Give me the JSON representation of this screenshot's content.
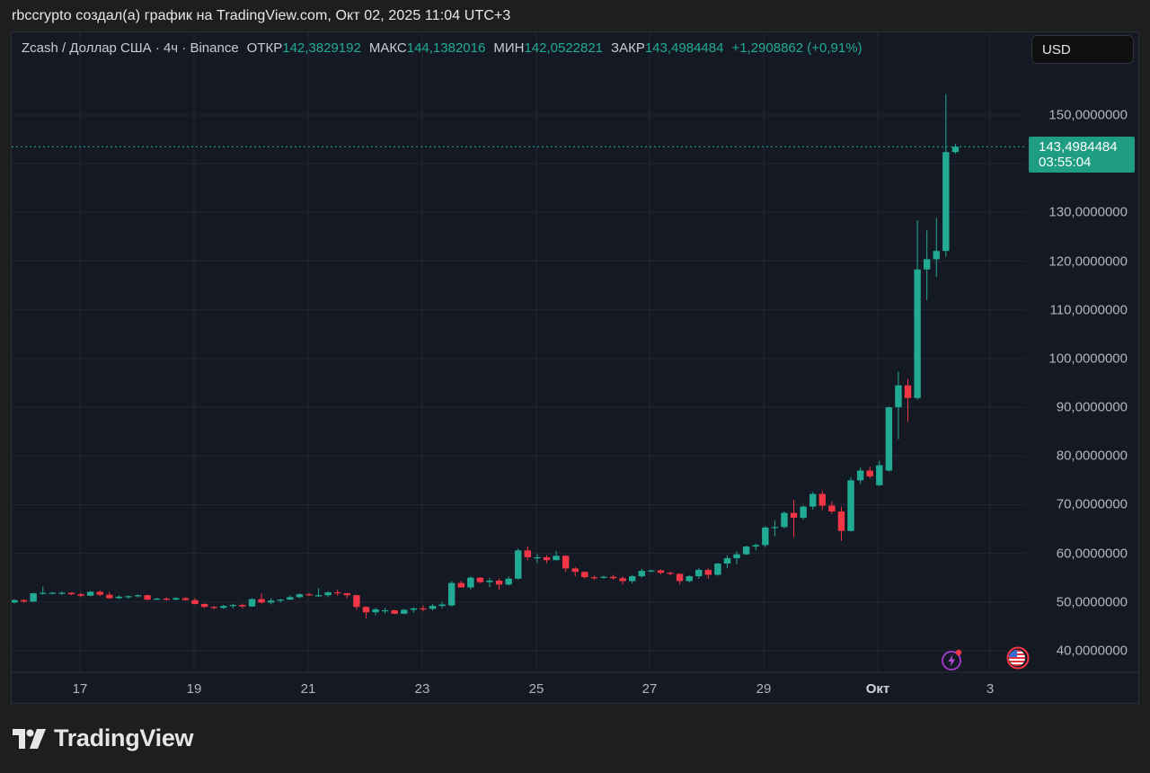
{
  "caption": "rbccrypto создал(а) график на TradingView.com, Окт 02, 2025 11:04 UTC+3",
  "legend": {
    "symbol": "Zcash / Доллар США · 4ч · Binance",
    "open_label": "ОТКР",
    "open": "142,3829192",
    "high_label": "МАКС",
    "high": "144,1382016",
    "low_label": "МИН",
    "low": "142,0522821",
    "close_label": "ЗАКР",
    "close": "143,4984484",
    "change": "+1,2908862 (+0,91%)"
  },
  "currency_button": "USD",
  "price_tag": {
    "price": "143,4984484",
    "countdown": "03:55:04"
  },
  "colors": {
    "up": "#22ab94",
    "down": "#f23645",
    "background": "#151924",
    "grid": "#232733",
    "tag": "#1f9d83"
  },
  "icons": {
    "events": "lightning-icon",
    "economic": "us-flag-icon"
  },
  "logo": {
    "text": "TradingView"
  },
  "chart_data": {
    "type": "candlestick",
    "title": "Zcash / Доллар США · 4ч · Binance",
    "xlabel": "",
    "ylabel": "USD",
    "ylim": [
      35,
      159
    ],
    "y_ticks": [
      "150,0000000",
      "130,0000000",
      "120,0000000",
      "110,0000000",
      "100,0000000",
      "90,0000000",
      "80,0000000",
      "70,0000000",
      "60,0000000",
      "50,0000000",
      "40,0000000"
    ],
    "x_ticks": [
      "17",
      "19",
      "21",
      "23",
      "25",
      "27",
      "29",
      "Окт",
      "3"
    ],
    "grid": true,
    "last_price": 143.4984484,
    "candles": [
      [
        49.9,
        50.6,
        49.7,
        50.4
      ],
      [
        50.4,
        50.6,
        49.8,
        50.1
      ],
      [
        50.1,
        51.9,
        50.0,
        51.8
      ],
      [
        51.8,
        53.2,
        51.5,
        51.9
      ],
      [
        51.9,
        52.1,
        51.6,
        51.9
      ],
      [
        51.9,
        52.2,
        51.5,
        51.9
      ],
      [
        51.9,
        52.0,
        51.4,
        51.6
      ],
      [
        51.6,
        51.9,
        51.0,
        51.3
      ],
      [
        51.3,
        52.3,
        51.2,
        52.1
      ],
      [
        52.1,
        52.4,
        51.2,
        51.5
      ],
      [
        51.5,
        52.1,
        50.6,
        50.8
      ],
      [
        50.8,
        51.4,
        50.6,
        51.1
      ],
      [
        51.1,
        51.4,
        50.7,
        51.2
      ],
      [
        51.2,
        51.6,
        50.9,
        51.4
      ],
      [
        51.4,
        51.5,
        50.3,
        50.5
      ],
      [
        50.5,
        50.9,
        50.4,
        50.7
      ],
      [
        50.7,
        51.0,
        50.3,
        50.5
      ],
      [
        50.5,
        51.0,
        50.3,
        50.8
      ],
      [
        50.8,
        51.0,
        50.3,
        50.4
      ],
      [
        50.4,
        50.8,
        49.5,
        49.6
      ],
      [
        49.6,
        49.7,
        48.8,
        49.0
      ],
      [
        49.0,
        49.2,
        48.5,
        48.8
      ],
      [
        48.8,
        49.4,
        48.6,
        49.2
      ],
      [
        49.2,
        49.6,
        48.7,
        49.4
      ],
      [
        49.4,
        49.7,
        48.7,
        49.1
      ],
      [
        49.1,
        50.8,
        49.0,
        50.6
      ],
      [
        50.6,
        51.8,
        49.7,
        49.9
      ],
      [
        49.9,
        50.8,
        49.5,
        50.3
      ],
      [
        50.3,
        50.6,
        49.9,
        50.5
      ],
      [
        50.5,
        51.4,
        50.4,
        51.0
      ],
      [
        51.0,
        51.8,
        50.8,
        51.6
      ],
      [
        51.6,
        51.9,
        51.3,
        51.4
      ],
      [
        51.4,
        52.8,
        51.1,
        51.4
      ],
      [
        51.4,
        52.2,
        51.0,
        52.0
      ],
      [
        52.0,
        52.6,
        51.3,
        51.8
      ],
      [
        51.8,
        51.9,
        50.8,
        51.4
      ],
      [
        51.4,
        51.5,
        48.4,
        49.0
      ],
      [
        49.0,
        49.1,
        46.6,
        47.9
      ],
      [
        47.9,
        48.8,
        47.3,
        48.5
      ],
      [
        48.3,
        48.8,
        47.6,
        48.3
      ],
      [
        48.3,
        48.4,
        47.5,
        47.6
      ],
      [
        47.6,
        48.6,
        47.5,
        48.4
      ],
      [
        48.4,
        48.9,
        47.8,
        48.7
      ],
      [
        48.7,
        49.3,
        48.1,
        48.6
      ],
      [
        48.6,
        49.6,
        48.3,
        49.2
      ],
      [
        49.2,
        50.0,
        48.7,
        49.5
      ],
      [
        49.3,
        54.3,
        49.1,
        53.9
      ],
      [
        53.9,
        54.4,
        53.0,
        53.0
      ],
      [
        53.0,
        55.3,
        52.6,
        55.0
      ],
      [
        55.0,
        55.1,
        53.8,
        54.1
      ],
      [
        54.1,
        55.0,
        53.1,
        54.4
      ],
      [
        54.4,
        54.8,
        52.5,
        53.6
      ],
      [
        53.6,
        55.3,
        53.4,
        54.8
      ],
      [
        54.8,
        61.0,
        54.6,
        60.6
      ],
      [
        60.6,
        61.4,
        58.6,
        59.2
      ],
      [
        59.2,
        59.8,
        58.0,
        59.2
      ],
      [
        59.2,
        59.6,
        58.0,
        58.6
      ],
      [
        58.6,
        60.5,
        58.6,
        59.5
      ],
      [
        59.5,
        59.6,
        56.2,
        56.9
      ],
      [
        56.9,
        57.2,
        55.3,
        56.2
      ],
      [
        56.2,
        56.3,
        54.8,
        55.1
      ],
      [
        55.1,
        55.4,
        54.6,
        55.0
      ],
      [
        55.0,
        55.4,
        54.8,
        55.2
      ],
      [
        55.2,
        55.6,
        54.6,
        54.9
      ],
      [
        54.9,
        55.3,
        53.6,
        54.3
      ],
      [
        54.3,
        55.5,
        53.8,
        55.3
      ],
      [
        55.3,
        56.8,
        55.0,
        56.4
      ],
      [
        56.4,
        56.6,
        56.1,
        56.5
      ],
      [
        56.5,
        56.7,
        55.7,
        56.0
      ],
      [
        56.0,
        56.3,
        55.5,
        55.8
      ],
      [
        55.8,
        55.9,
        53.6,
        54.3
      ],
      [
        54.3,
        55.5,
        54.1,
        55.3
      ],
      [
        55.3,
        57.0,
        54.8,
        56.6
      ],
      [
        56.6,
        56.9,
        54.8,
        55.6
      ],
      [
        55.6,
        58.0,
        55.4,
        57.9
      ],
      [
        57.9,
        59.6,
        57.0,
        59.0
      ],
      [
        59.0,
        60.4,
        57.8,
        59.8
      ],
      [
        59.8,
        61.6,
        59.6,
        61.4
      ],
      [
        61.4,
        62.0,
        60.6,
        61.7
      ],
      [
        61.7,
        65.6,
        61.3,
        65.3
      ],
      [
        65.3,
        66.8,
        63.5,
        65.4
      ],
      [
        65.4,
        68.6,
        65.1,
        68.3
      ],
      [
        68.3,
        71.0,
        63.4,
        67.3
      ],
      [
        67.3,
        69.8,
        66.9,
        69.6
      ],
      [
        69.6,
        72.6,
        69.0,
        72.2
      ],
      [
        72.2,
        72.9,
        68.9,
        69.8
      ],
      [
        69.8,
        70.7,
        68.1,
        68.6
      ],
      [
        68.6,
        69.6,
        62.6,
        64.6
      ],
      [
        64.6,
        75.6,
        64.5,
        75.0
      ],
      [
        75.0,
        77.6,
        74.3,
        77.0
      ],
      [
        77.0,
        77.8,
        75.4,
        75.8
      ],
      [
        74.0,
        79.0,
        73.8,
        78.1
      ],
      [
        77.0,
        90.1,
        76.8,
        90.0
      ],
      [
        90.0,
        97.3,
        83.4,
        94.5
      ],
      [
        94.5,
        95.8,
        87.1,
        91.9
      ],
      [
        91.9,
        128.4,
        91.6,
        118.3
      ],
      [
        118.3,
        126.3,
        112.0,
        120.4
      ],
      [
        120.4,
        128.9,
        116.8,
        122.1
      ],
      [
        122.1,
        154.3,
        120.9,
        142.4
      ],
      [
        142.4,
        144.1,
        142.05,
        143.5
      ]
    ]
  }
}
